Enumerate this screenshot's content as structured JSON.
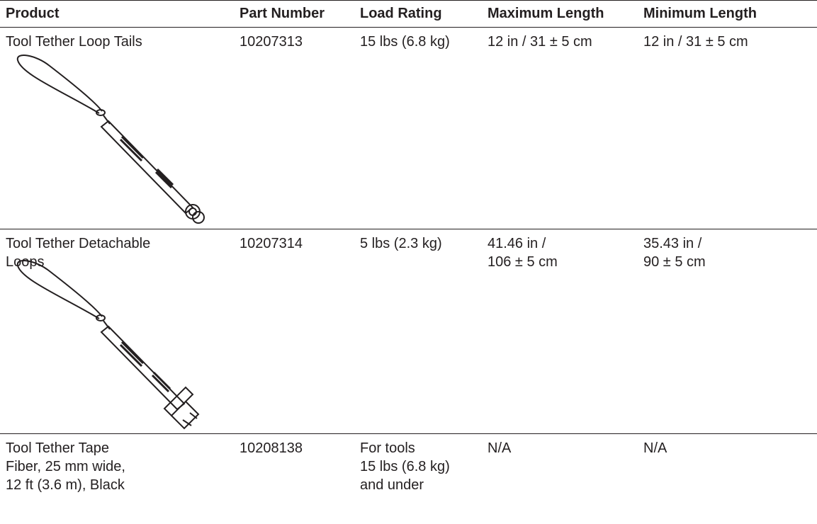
{
  "table": {
    "header": [
      "Product",
      "Part Number",
      "Load Rating",
      "Maximum Length",
      "Minimum Length"
    ],
    "rows": [
      [
        [
          "Tool Tether Loop Tails"
        ],
        [
          "10207313"
        ],
        [
          "15 lbs (6.8 kg)"
        ],
        [
          "12 in / 31 ± 5 cm"
        ],
        [
          "12 in / 31 ± 5 cm"
        ]
      ],
      [
        [
          "Tool Tether Detachable",
          "Loops"
        ],
        [
          "10207314"
        ],
        [
          "5 lbs (2.3 kg)"
        ],
        [
          "41.46 in /",
          "106 ± 5 cm"
        ],
        [
          "35.43 in /",
          "90 ± 5 cm"
        ]
      ],
      [
        [
          "Tool Tether Tape",
          "Fiber, 25 mm wide,",
          "12 ft (3.6 m), Black"
        ],
        [
          "10208138"
        ],
        [
          "For tools",
          "15 lbs (6.8 kg)",
          "and under"
        ],
        [
          "N/A"
        ],
        [
          "N/A"
        ]
      ]
    ]
  }
}
